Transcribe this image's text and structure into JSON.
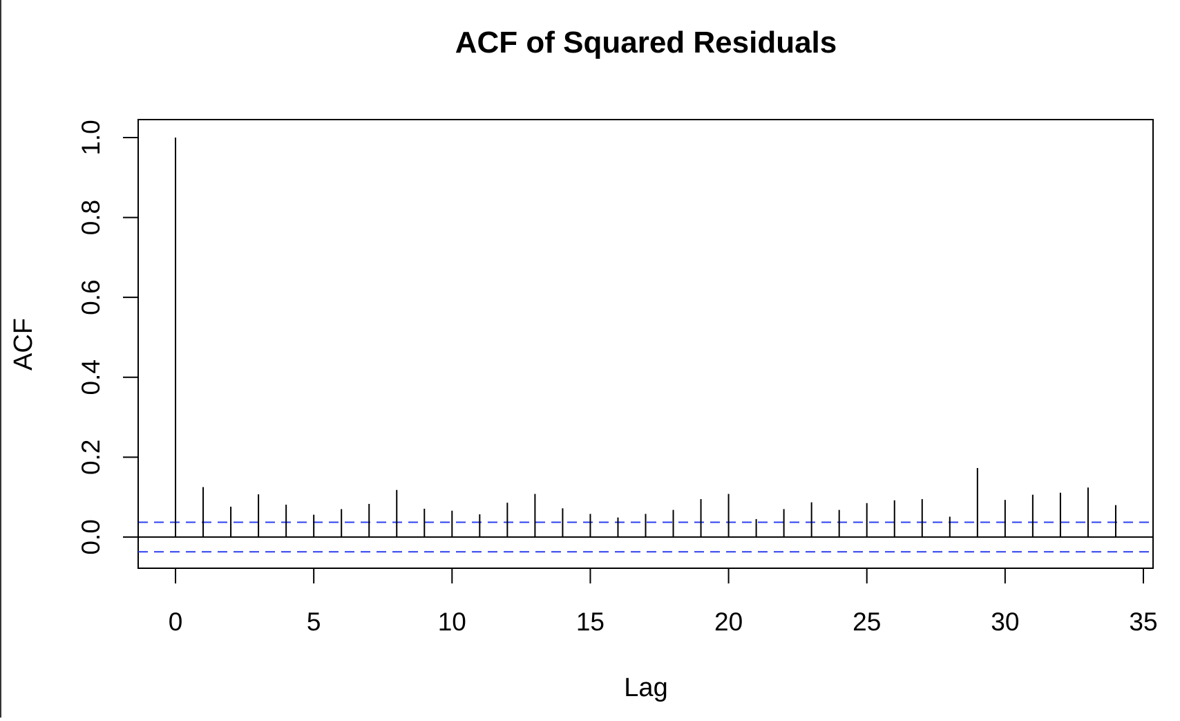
{
  "chart_data": {
    "type": "bar",
    "subtype": "acf-spikes",
    "title": "ACF of Squared Residuals",
    "xlabel": "Lag",
    "ylabel": "ACF",
    "xlim": [
      -1.35,
      35.35
    ],
    "ylim": [
      -0.078,
      1.045
    ],
    "x_ticks": [
      0,
      5,
      10,
      15,
      20,
      25,
      30,
      35
    ],
    "x_tick_labels": [
      "0",
      "5",
      "10",
      "15",
      "20",
      "25",
      "30",
      "35"
    ],
    "y_ticks": [
      0.0,
      0.2,
      0.4,
      0.6,
      0.8,
      1.0
    ],
    "y_tick_labels": [
      "0.0",
      "0.2",
      "0.4",
      "0.6",
      "0.8",
      "1.0"
    ],
    "lags": [
      0,
      1,
      2,
      3,
      4,
      5,
      6,
      7,
      8,
      9,
      10,
      11,
      12,
      13,
      14,
      15,
      16,
      17,
      18,
      19,
      20,
      21,
      22,
      23,
      24,
      25,
      26,
      27,
      28,
      29,
      30,
      31,
      32,
      33,
      34
    ],
    "values": [
      1.0,
      0.125,
      0.076,
      0.107,
      0.081,
      0.056,
      0.07,
      0.083,
      0.118,
      0.071,
      0.066,
      0.057,
      0.086,
      0.108,
      0.072,
      0.058,
      0.049,
      0.058,
      0.068,
      0.095,
      0.108,
      0.045,
      0.07,
      0.087,
      0.068,
      0.085,
      0.092,
      0.095,
      0.051,
      0.173,
      0.093,
      0.106,
      0.111,
      0.124,
      0.08
    ],
    "confidence_band": [
      -0.037,
      0.037
    ],
    "zero_line": true,
    "grid": false,
    "colors": {
      "spikes": "#000000",
      "confidence": "#2a3ff0",
      "frame": "#000000"
    }
  }
}
